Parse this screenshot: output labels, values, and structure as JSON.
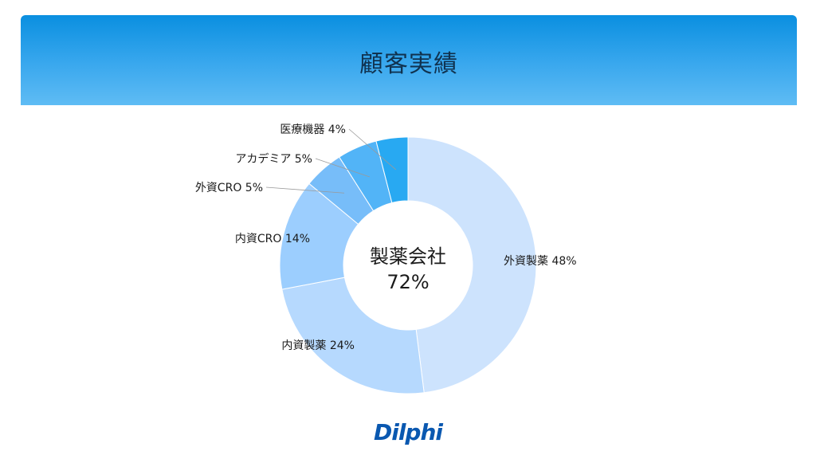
{
  "header": {
    "title": "顧客実績"
  },
  "logo": {
    "text": "Dilphi"
  },
  "chart_data": {
    "type": "pie",
    "donut": true,
    "center_label": "製薬会社",
    "center_value": "72%",
    "slices": [
      {
        "label": "外資製薬",
        "value": 48,
        "display": "外資製薬 48%",
        "color": "#cde3fd"
      },
      {
        "label": "内資製薬",
        "value": 24,
        "display": "内資製薬 24%",
        "color": "#b6d9fe"
      },
      {
        "label": "内資CRO",
        "value": 14,
        "display": "内資CRO 14%",
        "color": "#9ccefe"
      },
      {
        "label": "外資CRO",
        "value": 5,
        "display": "外資CRO 5%",
        "color": "#77bdf9"
      },
      {
        "label": "アカデミア",
        "value": 5,
        "display": "アカデミア 5%",
        "color": "#52b4f7"
      },
      {
        "label": "医療機器",
        "value": 4,
        "display": "医療機器 4%",
        "color": "#28a9f2"
      }
    ]
  }
}
